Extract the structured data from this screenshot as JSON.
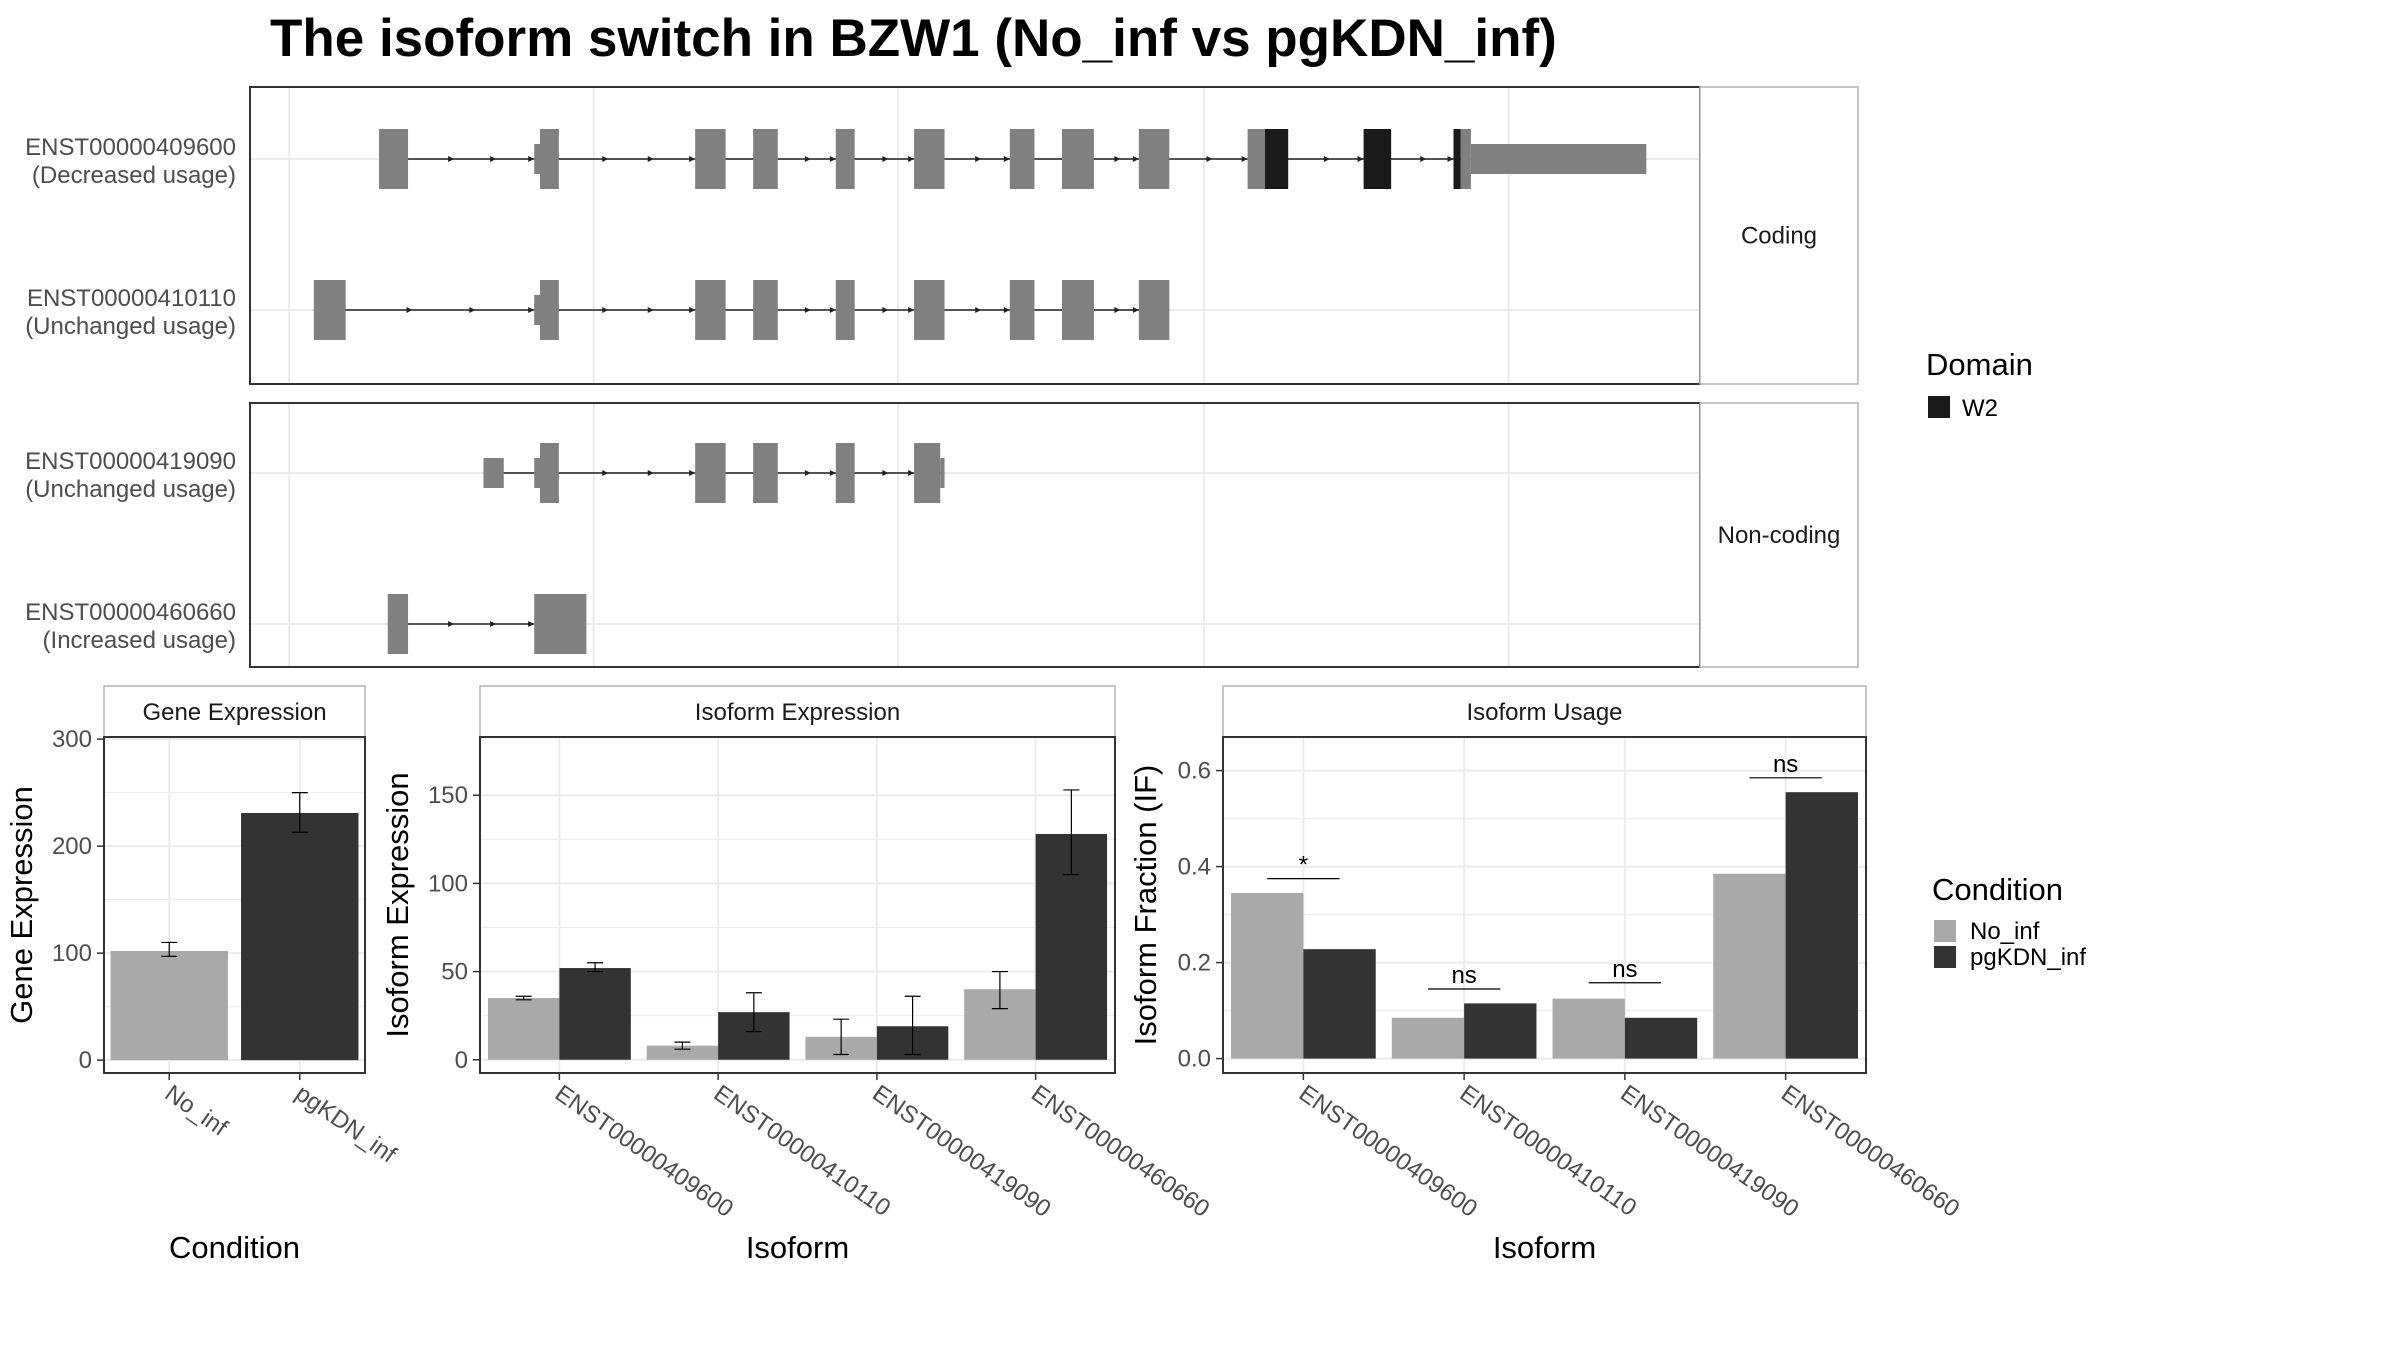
{
  "title": "The isoform switch in BZW1 (No_inf vs pgKDN_inf)",
  "colors": {
    "exon": "#808080",
    "domain": "#1a1a1a",
    "no_inf": "#a9a9a9",
    "pgkdn_inf": "#333333",
    "grid": "#ebebeb",
    "panel_border": "#333333",
    "strip_border": "#b3b3b3"
  },
  "domain_legend": {
    "title": "Domain",
    "items": [
      {
        "label": "W2",
        "color": "#1a1a1a"
      }
    ]
  },
  "condition_legend": {
    "title": "Condition",
    "items": [
      {
        "label": "No_inf",
        "color": "#a9a9a9"
      },
      {
        "label": "pgKDN_inf",
        "color": "#333333"
      }
    ]
  },
  "transcript_groups": [
    {
      "label": "Coding",
      "transcripts": [
        {
          "id": "ENST00000409600",
          "usage": "(Decreased usage)",
          "line": [
            0.089,
            0.938
          ],
          "exons": [
            [
              0.089,
              0.109,
              "full"
            ],
            [
              0.196,
              0.2,
              "half"
            ],
            [
              0.2,
              0.213,
              "full"
            ],
            [
              0.307,
              0.328,
              "full"
            ],
            [
              0.347,
              0.364,
              "full"
            ],
            [
              0.404,
              0.417,
              "full"
            ],
            [
              0.458,
              0.479,
              "full"
            ],
            [
              0.524,
              0.541,
              "full"
            ],
            [
              0.56,
              0.582,
              "full"
            ],
            [
              0.613,
              0.634,
              "full"
            ],
            [
              0.688,
              0.7,
              "full"
            ],
            [
              0.7,
              0.716,
              "domain"
            ],
            [
              0.768,
              0.787,
              "domain"
            ],
            [
              0.83,
              0.835,
              "domain"
            ],
            [
              0.835,
              0.842,
              "full"
            ],
            [
              0.842,
              0.963,
              "half"
            ]
          ]
        },
        {
          "id": "ENST00000410110",
          "usage": "(Unchanged usage)",
          "line": [
            0.044,
            0.634
          ],
          "exons": [
            [
              0.044,
              0.066,
              "full"
            ],
            [
              0.196,
              0.2,
              "half"
            ],
            [
              0.2,
              0.213,
              "full"
            ],
            [
              0.307,
              0.328,
              "full"
            ],
            [
              0.347,
              0.364,
              "full"
            ],
            [
              0.404,
              0.417,
              "full"
            ],
            [
              0.458,
              0.479,
              "full"
            ],
            [
              0.524,
              0.541,
              "full"
            ],
            [
              0.56,
              0.582,
              "full"
            ],
            [
              0.613,
              0.634,
              "full"
            ]
          ]
        }
      ]
    },
    {
      "label": "Non-coding",
      "transcripts": [
        {
          "id": "ENST00000419090",
          "usage": "(Unchanged usage)",
          "line": [
            0.161,
            0.479
          ],
          "exons": [
            [
              0.161,
              0.175,
              "half"
            ],
            [
              0.196,
              0.2,
              "half"
            ],
            [
              0.2,
              0.213,
              "full"
            ],
            [
              0.307,
              0.328,
              "full"
            ],
            [
              0.347,
              0.364,
              "full"
            ],
            [
              0.404,
              0.417,
              "full"
            ],
            [
              0.458,
              0.476,
              "full"
            ],
            [
              0.476,
              0.479,
              "half"
            ]
          ]
        },
        {
          "id": "ENST00000460660",
          "usage": "(Increased usage)",
          "line": [
            0.095,
            0.196
          ],
          "exons": [
            [
              0.095,
              0.109,
              "full"
            ],
            [
              0.196,
              0.232,
              "full"
            ]
          ]
        }
      ]
    }
  ],
  "chart_data": [
    {
      "type": "bar",
      "title": "Gene Expression",
      "xlabel": "Condition",
      "ylabel": "Gene Expression",
      "categories": [
        "No_inf",
        "pgKDN_inf"
      ],
      "values": [
        102,
        231
      ],
      "errors": [
        [
          97,
          110
        ],
        [
          213,
          250
        ]
      ],
      "yticks": [
        0,
        100,
        200,
        300
      ],
      "ylim": [
        -12,
        302
      ]
    },
    {
      "type": "bar",
      "title": "Isoform Expression",
      "xlabel": "Isoform",
      "ylabel": "Isoform Expression",
      "categories": [
        "ENST00000409600",
        "ENST00000410110",
        "ENST00000419090",
        "ENST00000460660"
      ],
      "series": [
        {
          "name": "No_inf",
          "values": [
            35,
            8,
            13,
            40
          ],
          "errors": [
            [
              34,
              36
            ],
            [
              6,
              10
            ],
            [
              3,
              23
            ],
            [
              29,
              50
            ]
          ]
        },
        {
          "name": "pgKDN_inf",
          "values": [
            52,
            27,
            19,
            128
          ],
          "errors": [
            [
              50,
              55
            ],
            [
              16,
              38
            ],
            [
              3,
              36
            ],
            [
              105,
              153
            ]
          ]
        }
      ],
      "yticks": [
        0,
        50,
        100,
        150
      ],
      "ylim": [
        -7.5,
        183
      ]
    },
    {
      "type": "bar",
      "title": "Isoform Usage",
      "xlabel": "Isoform",
      "ylabel": "Isoform Fraction (IF)",
      "categories": [
        "ENST00000409600",
        "ENST00000410110",
        "ENST00000419090",
        "ENST00000460660"
      ],
      "series": [
        {
          "name": "No_inf",
          "values": [
            0.345,
            0.085,
            0.125,
            0.385
          ]
        },
        {
          "name": "pgKDN_inf",
          "values": [
            0.228,
            0.115,
            0.085,
            0.555
          ]
        }
      ],
      "annotations": [
        {
          "label": "*",
          "y": 0.375
        },
        {
          "label": "ns",
          "y": 0.145
        },
        {
          "label": "ns",
          "y": 0.158
        },
        {
          "label": "ns",
          "y": 0.585
        }
      ],
      "yticks": [
        0.0,
        0.2,
        0.4,
        0.6
      ],
      "ylim": [
        -0.03,
        0.67
      ]
    }
  ]
}
